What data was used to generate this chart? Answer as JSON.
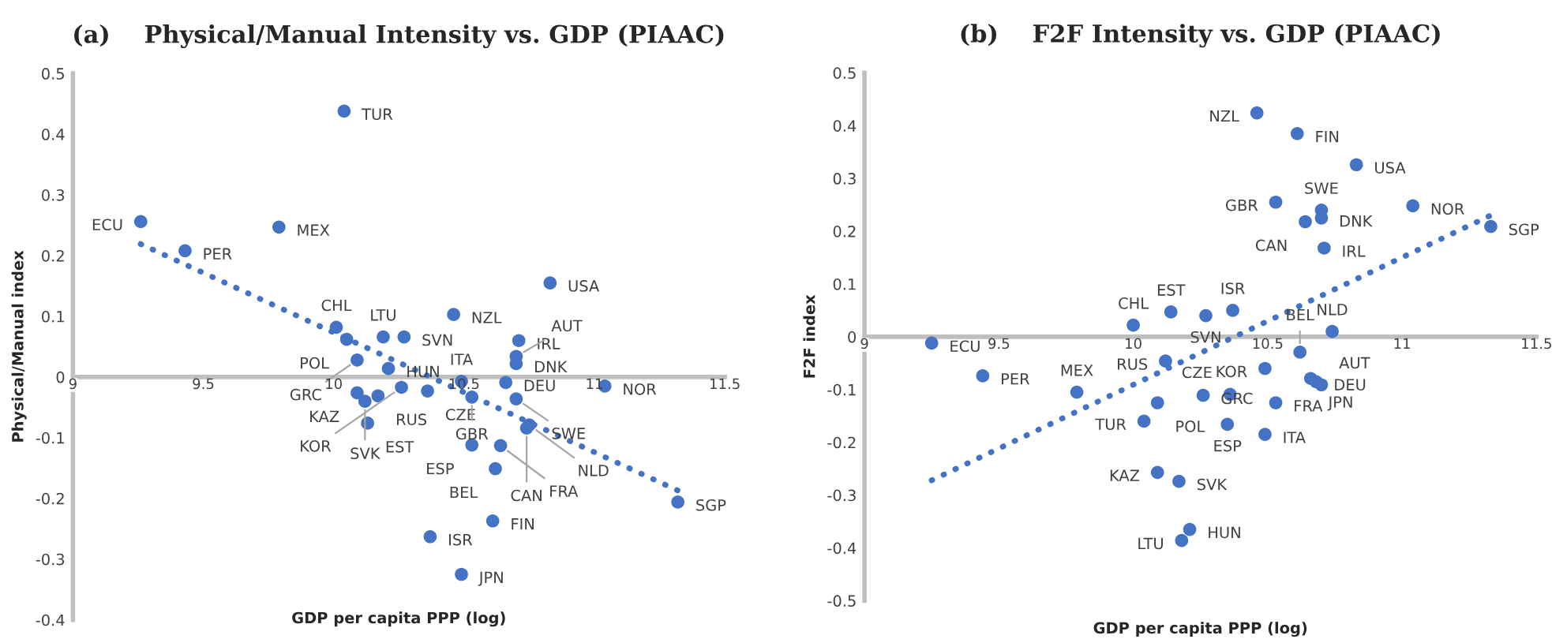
{
  "chart_data": [
    {
      "type": "scatter",
      "title": "(a)    Physical/Manual Intensity vs. GDP (PIAAC)",
      "xlabel": "GDP per capita PPP (log)",
      "ylabel": "Physical/Manual index",
      "xlim": [
        9,
        11.5
      ],
      "xticks": [
        9,
        9.5,
        10,
        10.5,
        11,
        11.5
      ],
      "ylim": [
        -0.4,
        0.5
      ],
      "yticks": [
        -0.4,
        -0.3,
        -0.2,
        -0.1,
        0,
        0.1,
        0.2,
        0.3,
        0.4,
        0.5
      ],
      "marker": "circle",
      "series": [
        {
          "color": "#4472c4",
          "x": [
            9.26,
            9.43,
            9.79,
            10.04,
            10.01,
            10.05,
            10.09,
            10.09,
            10.12,
            10.17,
            10.13,
            10.19,
            10.27,
            10.21,
            10.26,
            10.36,
            10.49,
            10.53,
            10.66,
            10.7,
            10.75,
            10.74,
            10.53,
            10.64,
            10.62,
            10.46,
            10.71,
            10.7,
            10.7,
            10.61,
            10.37,
            10.49,
            10.83,
            11.04,
            11.32
          ],
          "values": [
            0.256,
            0.208,
            0.247,
            0.438,
            0.082,
            0.062,
            0.028,
            -0.026,
            -0.04,
            -0.031,
            -0.076,
            0.066,
            0.066,
            0.014,
            -0.017,
            -0.023,
            -0.007,
            -0.033,
            -0.009,
            -0.036,
            -0.079,
            -0.084,
            -0.112,
            -0.113,
            -0.151,
            0.103,
            0.06,
            0.034,
            0.022,
            -0.237,
            -0.263,
            -0.325,
            0.155,
            -0.015,
            -0.206
          ],
          "value_labels": [
            "ECU",
            "PER",
            "MEX",
            "TUR",
            "CHL",
            "POL",
            "GRC",
            "KAZ",
            "SVK",
            "RUS",
            "EST",
            "LTU",
            "SVN",
            "HUN",
            "KOR",
            "CZE",
            "ITA",
            "GBR",
            "DEU",
            "SWE",
            "NLD",
            "CAN",
            "ESP",
            "FRA",
            "BEL",
            "NZL",
            "IRL",
            "AUT",
            "DNK",
            "FIN",
            "ISR",
            "JPN",
            "USA",
            "NOR",
            "SGP"
          ]
        },
        {
          "type": "line",
          "color": "#4472c4",
          "line_style": "dotted",
          "marker": "none",
          "x": [
            9.26,
            11.32
          ],
          "values": [
            0.219,
            -0.187
          ]
        }
      ]
    },
    {
      "type": "scatter",
      "title": "(b)    F2F Intensity vs. GDP (PIAAC)",
      "xlabel": "GDP per capita PPP (log)",
      "ylabel": "F2F index",
      "xlim": [
        9,
        11.5
      ],
      "xticks": [
        9,
        9.5,
        10,
        10.5,
        11,
        11.5
      ],
      "ylim": [
        -0.5,
        0.5
      ],
      "yticks": [
        -0.5,
        -0.4,
        -0.3,
        -0.2,
        -0.1,
        0,
        0.1,
        0.2,
        0.3,
        0.4,
        0.5
      ],
      "marker": "circle",
      "series": [
        {
          "color": "#4472c4",
          "x": [
            9.25,
            9.44,
            9.79,
            10.0,
            10.14,
            10.27,
            10.37,
            10.12,
            10.09,
            10.04,
            10.09,
            10.17,
            10.18,
            10.21,
            10.46,
            10.61,
            10.83,
            10.53,
            10.7,
            10.7,
            10.64,
            11.04,
            11.33,
            10.71,
            10.74,
            10.62,
            10.49,
            10.66,
            10.68,
            10.7,
            10.26,
            10.36,
            10.35,
            10.49,
            10.53
          ],
          "values": [
            -0.012,
            -0.074,
            -0.105,
            0.022,
            0.047,
            0.04,
            0.05,
            -0.046,
            -0.125,
            -0.16,
            -0.257,
            -0.274,
            -0.386,
            -0.365,
            0.424,
            0.385,
            0.326,
            0.255,
            0.24,
            0.225,
            0.218,
            0.248,
            0.209,
            0.168,
            0.01,
            -0.029,
            -0.06,
            -0.079,
            -0.085,
            -0.091,
            -0.111,
            -0.109,
            -0.166,
            -0.185,
            -0.125
          ],
          "value_labels": [
            "ECU",
            "PER",
            "MEX",
            "CHL",
            "EST",
            "SVN",
            "ISR",
            "RUS",
            "POL",
            "TUR",
            "KAZ",
            "SVK",
            "LTU",
            "HUN",
            "NZL",
            "FIN",
            "USA",
            "GBR",
            "SWE",
            "DNK",
            "CAN",
            "NOR",
            "SGP",
            "IRL",
            "NLD",
            "BEL",
            "KOR",
            "JPN",
            "DEU",
            "AUT",
            "GRC",
            "CZE",
            "ESP",
            "ITA",
            "FRA"
          ]
        },
        {
          "type": "line",
          "color": "#4472c4",
          "line_style": "dotted",
          "marker": "none",
          "x": [
            9.25,
            11.33
          ],
          "values": [
            -0.272,
            0.23
          ]
        }
      ]
    }
  ]
}
